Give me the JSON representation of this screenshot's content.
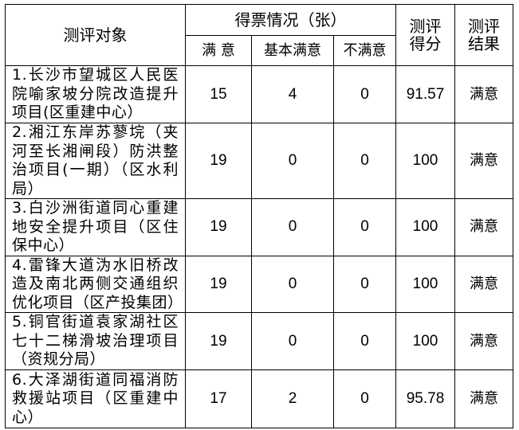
{
  "header": {
    "subject": "测评对象",
    "votes": "得票情况（张）",
    "satisfied": "满 意",
    "basically": "基本满意",
    "unsatisfied": "不满意",
    "score": "测评得分",
    "result": "测评结果"
  },
  "rows": [
    {
      "name": "1.长沙市望城区人民医院喻家坡分院改造提升项目(区重建中心）",
      "satisfied": "15",
      "basically": "4",
      "unsatisfied": "0",
      "score": "91.57",
      "result": "满意"
    },
    {
      "name": "2.湘江东岸苏蓼垸（夹河至长湘闸段）防洪整治项目(一期）（区水利局）",
      "satisfied": "19",
      "basically": "0",
      "unsatisfied": "0",
      "score": "100",
      "result": "满意"
    },
    {
      "name": "3.白沙洲街道同心重建地安全提升项目（区住保中心）",
      "satisfied": "19",
      "basically": "0",
      "unsatisfied": "0",
      "score": "100",
      "result": "满意"
    },
    {
      "name": "4.雷锋大道沩水旧桥改造及南北两侧交通组织优化项目（区产投集团）",
      "satisfied": "19",
      "basically": "0",
      "unsatisfied": "0",
      "score": "100",
      "result": "满意"
    },
    {
      "name": "5.铜官街道袁家湖社区七十二梯滑坡治理项目（资规分局）",
      "satisfied": "19",
      "basically": "0",
      "unsatisfied": "0",
      "score": "100",
      "result": "满意"
    },
    {
      "name": "6.大泽湖街道同福消防救援站项目（区重建中心）",
      "satisfied": "17",
      "basically": "2",
      "unsatisfied": "0",
      "score": "95.78",
      "result": "满意"
    }
  ]
}
